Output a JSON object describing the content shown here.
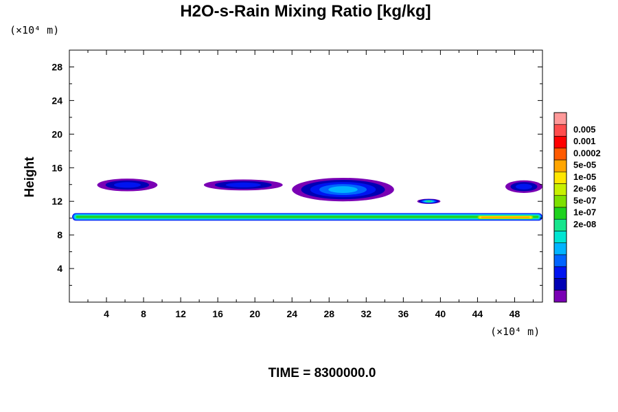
{
  "chart_data": {
    "type": "heatmap",
    "title": "H2O-s-Rain Mixing Ratio [kg/kg]",
    "ylabel": "Height",
    "y_unit": "(×10⁴ m)",
    "x_unit": "(×10⁴ m)",
    "xlim": [
      0,
      51
    ],
    "ylim": [
      0,
      30
    ],
    "x_ticks": [
      "4",
      "8",
      "12",
      "16",
      "20",
      "24",
      "28",
      "32",
      "36",
      "40",
      "44",
      "48"
    ],
    "y_ticks": [
      "4",
      "8",
      "12",
      "16",
      "20",
      "24",
      "28"
    ],
    "colorbar": {
      "labels": [
        "0.005",
        "0.001",
        "0.0002",
        "5e-05",
        "1e-05",
        "2e-06",
        "5e-07",
        "1e-07",
        "2e-08"
      ],
      "colors": [
        "#ff9999",
        "#ff4d4d",
        "#ff0000",
        "#ff5a00",
        "#ffa500",
        "#ffe600",
        "#c8f000",
        "#7ee000",
        "#1ed21e",
        "#16e58c",
        "#00e5d2",
        "#00b4ff",
        "#0064ff",
        "#0014f0",
        "#0000b4",
        "#7a00b4"
      ]
    },
    "regions": [
      {
        "layer": "lower-band",
        "x": [
          0.3,
          51
        ],
        "y": [
          9.7,
          10.6
        ],
        "level": "1e-05"
      },
      {
        "layer": "lower-band-core",
        "x": [
          44,
          50
        ],
        "y": [
          9.9,
          10.3
        ],
        "level": "0.0002"
      },
      {
        "layer": "upper-cloud",
        "x": [
          3,
          9.5
        ],
        "y": [
          13.2,
          14.7
        ],
        "level": "5e-07"
      },
      {
        "layer": "upper-cloud",
        "x": [
          14.5,
          23
        ],
        "y": [
          13.3,
          14.6
        ],
        "level": "5e-07"
      },
      {
        "layer": "upper-cloud",
        "x": [
          24,
          35
        ],
        "y": [
          12,
          14.8
        ],
        "level": "2e-06"
      },
      {
        "layer": "upper-cloud",
        "x": [
          47,
          51
        ],
        "y": [
          13,
          14.5
        ],
        "level": "5e-07"
      },
      {
        "layer": "small-cell",
        "x": [
          37.5,
          40
        ],
        "y": [
          11.7,
          12.3
        ],
        "level": "1e-05"
      }
    ]
  },
  "footer": {
    "time_label": "TIME = 8300000.0"
  }
}
